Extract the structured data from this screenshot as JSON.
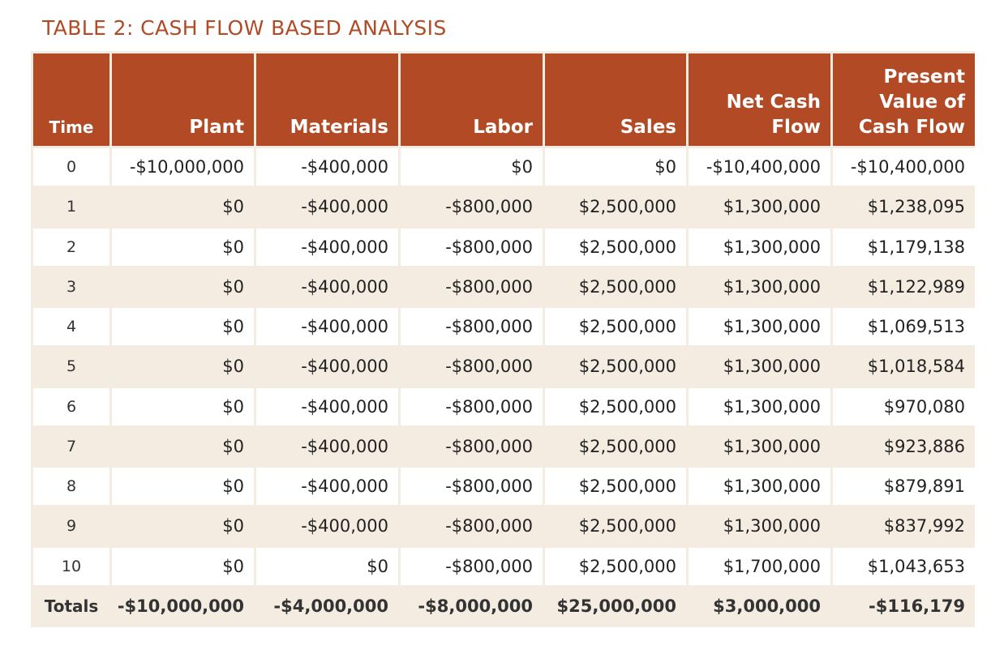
{
  "title": "TABLE 2: CASH FLOW BASED ANALYSIS",
  "columns": {
    "time": "Time",
    "plant": "Plant",
    "materials": "Materials",
    "labor": "Labor",
    "sales": "Sales",
    "net_cash_flow": "Net Cash Flow",
    "present_value": "Present Value of Cash Flow"
  },
  "rows": [
    {
      "time": "0",
      "plant": "-$10,000,000",
      "materials": "-$400,000",
      "labor": "$0",
      "sales": "$0",
      "net": "-$10,400,000",
      "pv": "-$10,400,000"
    },
    {
      "time": "1",
      "plant": "$0",
      "materials": "-$400,000",
      "labor": "-$800,000",
      "sales": "$2,500,000",
      "net": "$1,300,000",
      "pv": "$1,238,095"
    },
    {
      "time": "2",
      "plant": "$0",
      "materials": "-$400,000",
      "labor": "-$800,000",
      "sales": "$2,500,000",
      "net": "$1,300,000",
      "pv": "$1,179,138"
    },
    {
      "time": "3",
      "plant": "$0",
      "materials": "-$400,000",
      "labor": "-$800,000",
      "sales": "$2,500,000",
      "net": "$1,300,000",
      "pv": "$1,122,989"
    },
    {
      "time": "4",
      "plant": "$0",
      "materials": "-$400,000",
      "labor": "-$800,000",
      "sales": "$2,500,000",
      "net": "$1,300,000",
      "pv": "$1,069,513"
    },
    {
      "time": "5",
      "plant": "$0",
      "materials": "-$400,000",
      "labor": "-$800,000",
      "sales": "$2,500,000",
      "net": "$1,300,000",
      "pv": "$1,018,584"
    },
    {
      "time": "6",
      "plant": "$0",
      "materials": "-$400,000",
      "labor": "-$800,000",
      "sales": "$2,500,000",
      "net": "$1,300,000",
      "pv": "$970,080"
    },
    {
      "time": "7",
      "plant": "$0",
      "materials": "-$400,000",
      "labor": "-$800,000",
      "sales": "$2,500,000",
      "net": "$1,300,000",
      "pv": "$923,886"
    },
    {
      "time": "8",
      "plant": "$0",
      "materials": "-$400,000",
      "labor": "-$800,000",
      "sales": "$2,500,000",
      "net": "$1,300,000",
      "pv": "$879,891"
    },
    {
      "time": "9",
      "plant": "$0",
      "materials": "-$400,000",
      "labor": "-$800,000",
      "sales": "$2,500,000",
      "net": "$1,300,000",
      "pv": "$837,992"
    },
    {
      "time": "10",
      "plant": "$0",
      "materials": "$0",
      "labor": "-$800,000",
      "sales": "$2,500,000",
      "net": "$1,700,000",
      "pv": "$1,043,653"
    }
  ],
  "totals": {
    "label": "Totals",
    "plant": "-$10,000,000",
    "materials": "-$4,000,000",
    "labor": "-$8,000,000",
    "sales": "$25,000,000",
    "net": "$3,000,000",
    "pv": "-$116,179"
  },
  "colors": {
    "header_bg": "#b24a25",
    "title": "#b24a25",
    "band": "#f4ebe1"
  }
}
